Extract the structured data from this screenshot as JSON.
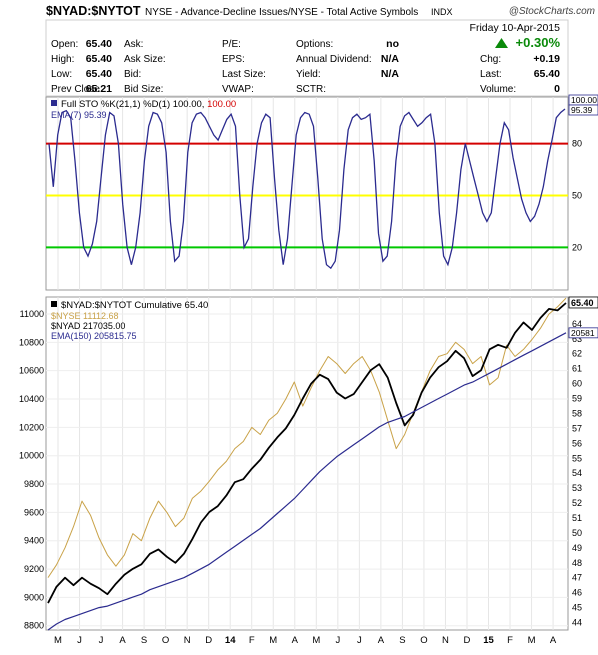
{
  "header": {
    "symbol": "$NYAD:$NYTOT",
    "description": "NYSE - Advance-Decline Issues/NYSE - Total Active Symbols",
    "exchange": "INDX",
    "brand": "@StockCharts.com",
    "date": "Friday  10-Apr-2015",
    "pct_change": "+0.30%",
    "arrow_icon": "triangle-up-icon",
    "up_color": "#0a8a0a"
  },
  "quote_table": {
    "rows": [
      [
        {
          "label": "Open:",
          "value": "65.40"
        },
        {
          "label": "Ask:",
          "value": ""
        },
        {
          "label": "P/E:",
          "value": ""
        },
        {
          "label": "Options:",
          "value": "no"
        },
        {
          "label": "",
          "value": ""
        }
      ],
      [
        {
          "label": "High:",
          "value": "65.40"
        },
        {
          "label": "Ask Size:",
          "value": ""
        },
        {
          "label": "EPS:",
          "value": ""
        },
        {
          "label": "Annual Dividend:",
          "value": "N/A"
        },
        {
          "label": "Chg:",
          "value": "+0.19"
        }
      ],
      [
        {
          "label": "Low:",
          "value": "65.40"
        },
        {
          "label": "Bid:",
          "value": ""
        },
        {
          "label": "Last Size:",
          "value": ""
        },
        {
          "label": "Yield:",
          "value": "N/A"
        },
        {
          "label": "Last:",
          "value": "65.40"
        }
      ],
      [
        {
          "label": "Prev Close:",
          "value": "65.21"
        },
        {
          "label": "Bid Size:",
          "value": ""
        },
        {
          "label": "VWAP:",
          "value": ""
        },
        {
          "label": "SCTR:",
          "value": ""
        },
        {
          "label": "Volume:",
          "value": "0"
        }
      ]
    ]
  },
  "chart_data": [
    {
      "type": "line",
      "title": "Full STO %K(21,1) %D(1) 100.00, 100.00",
      "legend": [
        {
          "label": "Full STO %K(21,1) %D(1) 100.00,",
          "value": "100.00",
          "color": "#2b2b8f"
        },
        {
          "label": "EMA(7) 95.39",
          "value": "",
          "color": "#2b2b8f"
        }
      ],
      "ylim": [
        0,
        100
      ],
      "y_ticks": [
        20,
        50,
        80
      ],
      "ref_lines": [
        {
          "value": 80,
          "color": "#d40000"
        },
        {
          "value": 50,
          "color": "#ffff00"
        },
        {
          "value": 20,
          "color": "#00c800"
        }
      ],
      "right_labels": [
        "100.00",
        "95.39"
      ],
      "series": [
        {
          "color": "#2b2b8f",
          "values": [
            80,
            55,
            85,
            98,
            99,
            95,
            70,
            40,
            20,
            15,
            22,
            35,
            60,
            85,
            98,
            96,
            80,
            45,
            20,
            10,
            20,
            40,
            70,
            90,
            98,
            97,
            92,
            75,
            35,
            12,
            15,
            35,
            75,
            92,
            97,
            98,
            95,
            90,
            85,
            82,
            88,
            94,
            97,
            90,
            50,
            20,
            25,
            55,
            80,
            92,
            97,
            95,
            60,
            30,
            10,
            25,
            55,
            85,
            95,
            98,
            97,
            90,
            60,
            25,
            10,
            8,
            12,
            30,
            65,
            88,
            95,
            97,
            94,
            95,
            97,
            70,
            28,
            12,
            15,
            35,
            70,
            90,
            96,
            98,
            94,
            90,
            92,
            95,
            97,
            80,
            40,
            15,
            10,
            20,
            40,
            65,
            80,
            70,
            60,
            50,
            40,
            35,
            40,
            60,
            80,
            92,
            88,
            72,
            60,
            48,
            40,
            35,
            38,
            45,
            55,
            70,
            82,
            95,
            98,
            100
          ]
        }
      ]
    },
    {
      "type": "line",
      "title": "$NYAD:$NYTOT Cumulative 65.40",
      "legend": [
        {
          "label": "$NYAD:$NYTOT Cumulative 65.40",
          "color": "#000000"
        },
        {
          "label": "$NYSE 11112.68",
          "color": "#c9a248"
        },
        {
          "label": "$NYAD 217035.00",
          "color": "#000000"
        },
        {
          "label": "EMA(150) 205815.75",
          "color": "#2b2b8f"
        }
      ],
      "x_tick_labels": [
        "M",
        "J",
        "J",
        "A",
        "S",
        "O",
        "N",
        "D",
        "14",
        "F",
        "M",
        "A",
        "M",
        "J",
        "J",
        "A",
        "S",
        "O",
        "N",
        "D",
        "15",
        "F",
        "M",
        "A"
      ],
      "x_tick_months": [
        0,
        1,
        2,
        3,
        4,
        5,
        6,
        7,
        8,
        9,
        10,
        11,
        12,
        13,
        14,
        15,
        16,
        17,
        18,
        19,
        20,
        21,
        22,
        23
      ],
      "left_axis": {
        "ylim": [
          8770,
          11120
        ],
        "ticks": [
          8800,
          9000,
          9200,
          9400,
          9600,
          9800,
          10000,
          10200,
          10400,
          10600,
          10800,
          11000
        ]
      },
      "right_axis": {
        "ylim": [
          43.5,
          65.8
        ],
        "ticks": [
          44,
          45,
          46,
          47,
          48,
          49,
          50,
          51,
          52,
          53,
          54,
          55,
          56,
          57,
          58,
          59,
          60,
          61,
          62,
          63,
          64
        ],
        "current_label": "65.40",
        "ema_label": "20581"
      },
      "series": [
        {
          "name": "$NYSE",
          "axis": "left",
          "color": "#c9a248",
          "values": [
            9140,
            9230,
            9350,
            9500,
            9680,
            9580,
            9420,
            9300,
            9220,
            9300,
            9450,
            9400,
            9560,
            9680,
            9600,
            9500,
            9560,
            9700,
            9750,
            9820,
            9900,
            9960,
            10050,
            10100,
            10200,
            10150,
            10250,
            10300,
            10400,
            10520,
            10350,
            10480,
            10600,
            10700,
            10650,
            10580,
            10650,
            10700,
            10600,
            10450,
            10250,
            10050,
            10150,
            10300,
            10450,
            10600,
            10700,
            10720,
            10800,
            10750,
            10650,
            10700,
            10500,
            10550,
            10780,
            10700,
            10750,
            10820,
            10900,
            11000,
            11050,
            11112
          ]
        },
        {
          "name": "$NYAD:$NYTOT Cumulative",
          "axis": "right",
          "color": "#000000",
          "values": [
            45.3,
            46.4,
            47.0,
            46.5,
            47.0,
            46.6,
            46.3,
            45.9,
            46.6,
            47.2,
            47.6,
            47.9,
            48.6,
            48.9,
            48.4,
            48.0,
            48.6,
            49.6,
            50.7,
            51.4,
            51.8,
            52.5,
            53.4,
            53.6,
            54.3,
            54.9,
            55.7,
            56.4,
            57.0,
            57.9,
            59.0,
            60.0,
            60.6,
            60.3,
            59.4,
            59.0,
            59.3,
            60.1,
            60.9,
            61.3,
            60.4,
            58.7,
            57.2,
            57.9,
            59.4,
            60.4,
            61.1,
            61.5,
            62.2,
            61.7,
            60.5,
            60.9,
            62.3,
            62.6,
            62.4,
            63.4,
            64.1,
            63.6,
            64.4,
            65.0,
            64.9,
            65.4
          ]
        },
        {
          "name": "EMA(150)",
          "axis": "right",
          "color": "#2b2b8f",
          "values": [
            43.5,
            43.9,
            44.2,
            44.4,
            44.6,
            44.8,
            45.0,
            45.1,
            45.3,
            45.5,
            45.7,
            45.9,
            46.2,
            46.4,
            46.6,
            46.8,
            47.0,
            47.3,
            47.6,
            47.9,
            48.3,
            48.7,
            49.1,
            49.5,
            49.9,
            50.3,
            50.8,
            51.3,
            51.8,
            52.3,
            52.9,
            53.5,
            54.1,
            54.6,
            55.1,
            55.5,
            55.9,
            56.3,
            56.7,
            57.1,
            57.4,
            57.6,
            57.8,
            58.1,
            58.4,
            58.7,
            59.0,
            59.3,
            59.6,
            59.9,
            60.1,
            60.4,
            60.7,
            61.0,
            61.3,
            61.6,
            61.9,
            62.2,
            62.5,
            62.8,
            63.1,
            63.4
          ]
        }
      ]
    }
  ]
}
